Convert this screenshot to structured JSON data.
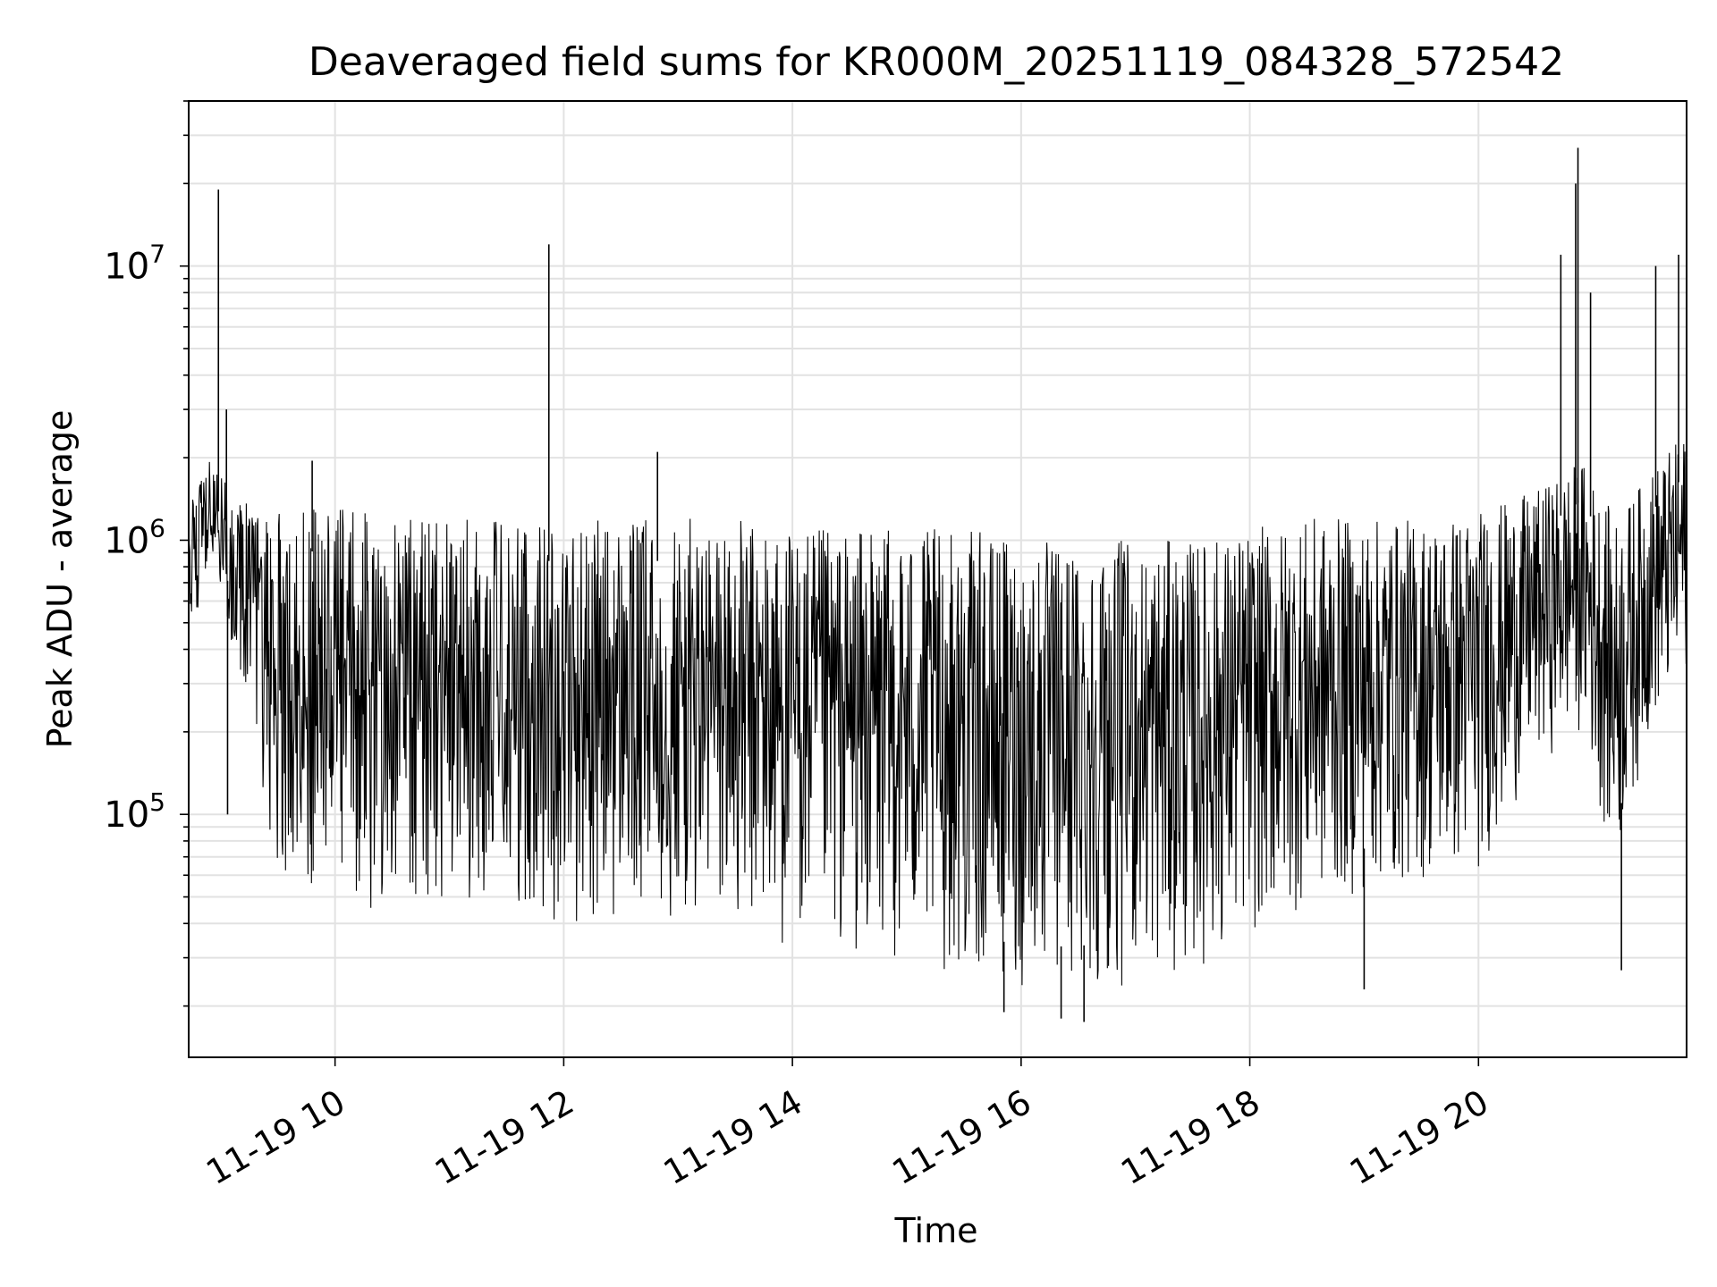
{
  "chart_data": {
    "type": "line",
    "title": "Deaveraged field sums for KR000M_20251119_084328_572542",
    "xlabel": "Time",
    "ylabel": "Peak ADU - average",
    "yscale": "log",
    "ylim": [
      13000,
      40000000
    ],
    "xlim_hours": [
      8.72,
      21.82
    ],
    "grid": true,
    "line_color": "#000000",
    "x_ticks": [
      {
        "hour": 10,
        "label": "11-19 10"
      },
      {
        "hour": 12,
        "label": "11-19 12"
      },
      {
        "hour": 14,
        "label": "11-19 14"
      },
      {
        "hour": 16,
        "label": "11-19 16"
      },
      {
        "hour": 18,
        "label": "11-19 18"
      },
      {
        "hour": 20,
        "label": "11-19 20"
      }
    ],
    "y_ticks": [
      {
        "value": 100000,
        "base": "10",
        "exp": "5"
      },
      {
        "value": 1000000,
        "base": "10",
        "exp": "6"
      },
      {
        "value": 10000000,
        "base": "10",
        "exp": "7"
      }
    ],
    "envelope": {
      "note": "Dense noisy series; approximate upper/lower envelope of oscillation (hours, ADU)",
      "hours": [
        8.72,
        8.9,
        9.2,
        9.5,
        10.0,
        10.5,
        11.0,
        11.5,
        12.0,
        12.5,
        13.0,
        13.5,
        14.0,
        14.5,
        15.0,
        15.5,
        16.0,
        16.5,
        17.0,
        17.5,
        18.0,
        18.5,
        19.0,
        19.5,
        20.0,
        20.5,
        20.9,
        21.2,
        21.5,
        21.82
      ],
      "upper": [
        1300000,
        2000000,
        1400000,
        1300000,
        1300000,
        1300000,
        1200000,
        1200000,
        1200000,
        1200000,
        1200000,
        1200000,
        1100000,
        1100000,
        1100000,
        1100000,
        1000000,
        1000000,
        1000000,
        1000000,
        1100000,
        1200000,
        1200000,
        1200000,
        1300000,
        1500000,
        2000000,
        1200000,
        1800000,
        2500000
      ],
      "lower": [
        350000,
        800000,
        300000,
        60000,
        45000,
        45000,
        45000,
        45000,
        40000,
        38000,
        36000,
        34000,
        32000,
        30000,
        28000,
        25000,
        22000,
        22000,
        24000,
        26000,
        35000,
        45000,
        50000,
        55000,
        60000,
        150000,
        200000,
        60000,
        200000,
        300000
      ]
    },
    "spikes": [
      {
        "hour": 8.98,
        "value": 19000000
      },
      {
        "hour": 9.06,
        "value": 100000
      },
      {
        "hour": 11.87,
        "value": 12000000
      },
      {
        "hour": 12.82,
        "value": 2100000
      },
      {
        "hour": 9.8,
        "value": 1950000
      },
      {
        "hour": 20.72,
        "value": 11000000
      },
      {
        "hour": 20.87,
        "value": 27000000
      },
      {
        "hour": 20.85,
        "value": 20000000
      },
      {
        "hour": 20.98,
        "value": 8000000
      },
      {
        "hour": 21.25,
        "value": 27000
      },
      {
        "hour": 21.55,
        "value": 10000000
      },
      {
        "hour": 21.75,
        "value": 11000000
      },
      {
        "hour": 16.35,
        "value": 18000
      },
      {
        "hour": 16.55,
        "value": 17500
      },
      {
        "hour": 15.85,
        "value": 19000
      },
      {
        "hour": 19.0,
        "value": 23000
      },
      {
        "hour": 9.05,
        "value": 3000000
      }
    ],
    "random_seed": 572542,
    "num_points": 2600
  }
}
